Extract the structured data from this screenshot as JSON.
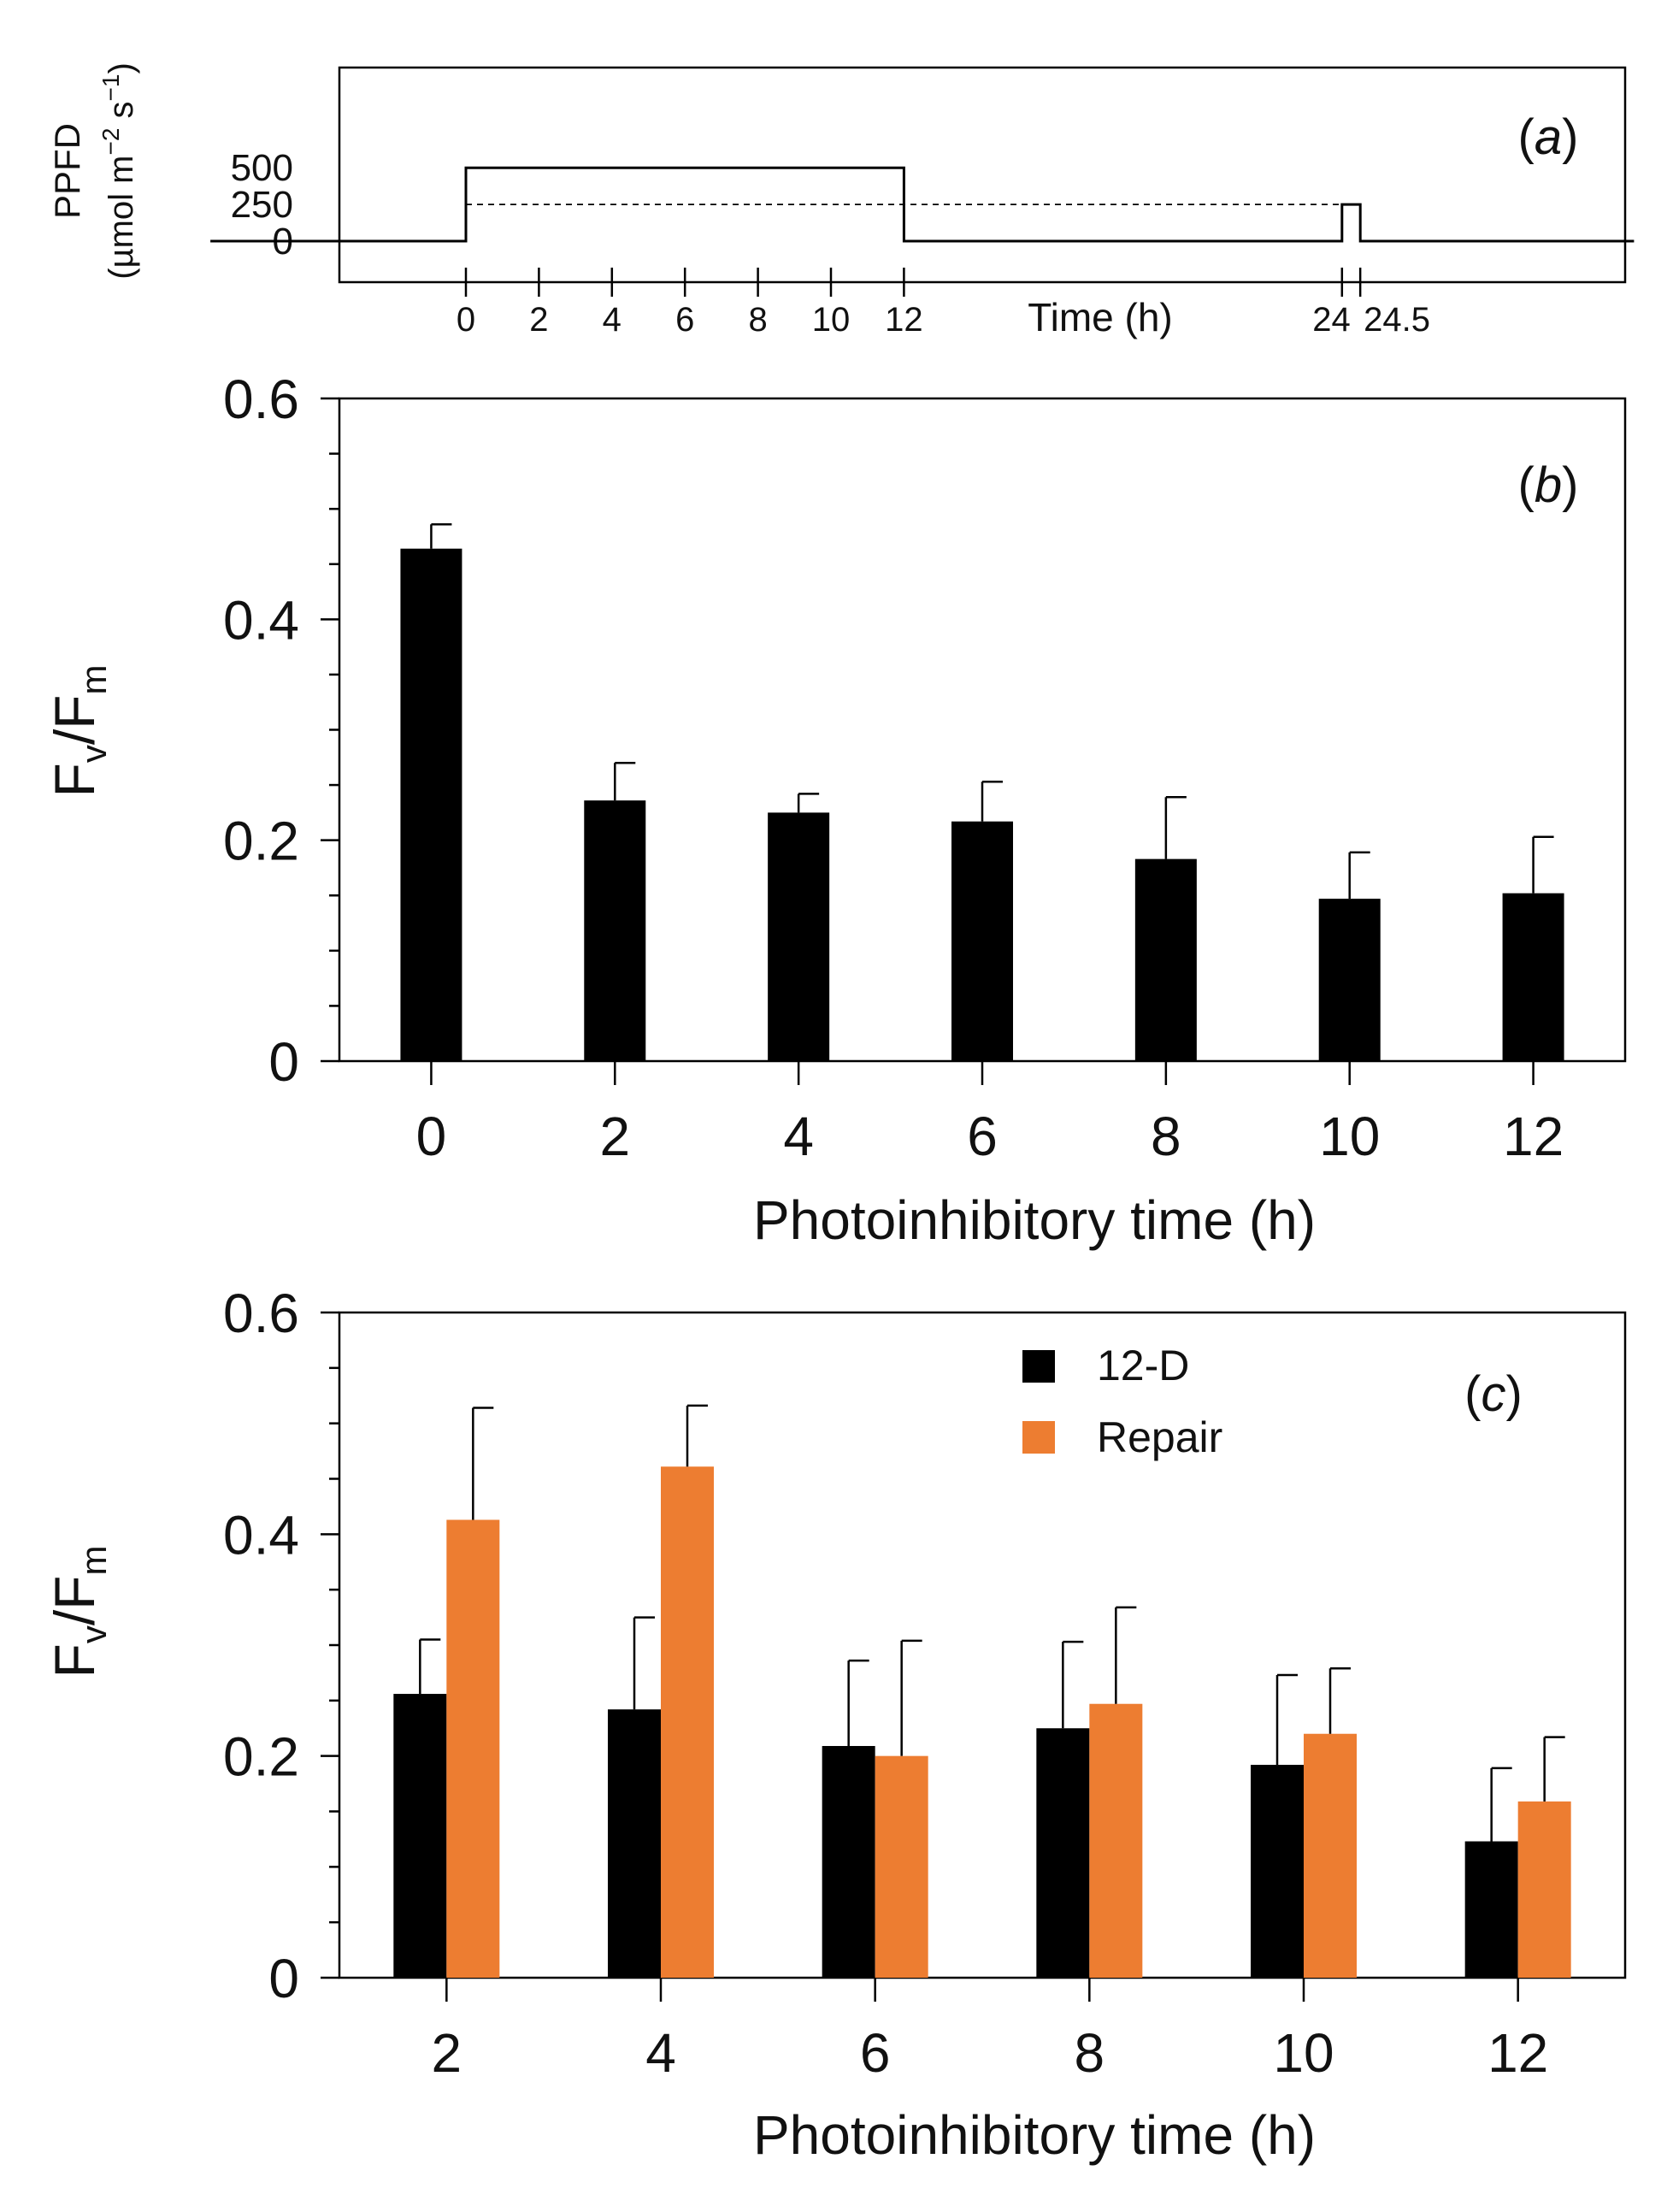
{
  "chart_data": [
    {
      "panel": "(a)",
      "panel_letter": "a",
      "type": "line",
      "ylabel_line1": "PPFD",
      "ylabel_line2": "(µmol m",
      "ylabel_exp1": "−2",
      "ylabel_mid": " s",
      "ylabel_exp2": "−1",
      "ylabel_end": ")",
      "xlabel": "Time (h)",
      "yticks": [
        0,
        250,
        500
      ],
      "xticks": [
        0,
        2,
        4,
        6,
        8,
        10,
        12,
        24,
        "24.5"
      ],
      "series": [
        {
          "name": "PPFD",
          "style": "solid",
          "points": [
            [
              -7,
              0
            ],
            [
              0,
              0
            ],
            [
              0,
              500
            ],
            [
              12,
              500
            ],
            [
              12,
              0
            ],
            [
              24,
              0
            ],
            [
              24,
              250
            ],
            [
              24.5,
              250
            ],
            [
              24.5,
              0
            ],
            [
              32,
              0
            ]
          ]
        },
        {
          "name": "reference 250",
          "style": "dashed",
          "points": [
            [
              0,
              250
            ],
            [
              24,
              250
            ]
          ]
        }
      ]
    },
    {
      "panel": "(b)",
      "panel_letter": "b",
      "type": "bar",
      "ylabel_main": "F",
      "ylabel_sub1": "v",
      "ylabel_slash": "/F",
      "ylabel_sub2": "m",
      "xlabel": "Photoinhibitory time (h)",
      "ylim": [
        0,
        0.6
      ],
      "yticks": [
        "0",
        "0.2",
        "0.4",
        "0.6"
      ],
      "categories": [
        "0",
        "2",
        "4",
        "6",
        "8",
        "10",
        "12"
      ],
      "series": [
        {
          "name": "Fv/Fm",
          "color": "#000000",
          "values": [
            0.464,
            0.236,
            0.225,
            0.217,
            0.183,
            0.147,
            0.152
          ],
          "errors": [
            0.022,
            0.034,
            0.017,
            0.036,
            0.056,
            0.042,
            0.051
          ]
        }
      ]
    },
    {
      "panel": "(c)",
      "panel_letter": "c",
      "type": "bar",
      "ylabel_main": "F",
      "ylabel_sub1": "v",
      "ylabel_slash": "/F",
      "ylabel_sub2": "m",
      "xlabel": "Photoinhibitory time (h)",
      "ylim": [
        0,
        0.6
      ],
      "yticks": [
        "0",
        "0.2",
        "0.4",
        "0.6"
      ],
      "categories": [
        "2",
        "4",
        "6",
        "8",
        "10",
        "12"
      ],
      "legend_position": "top-center",
      "series": [
        {
          "name": "12-D",
          "color": "#000000",
          "values": [
            0.256,
            0.242,
            0.209,
            0.225,
            0.192,
            0.123
          ],
          "errors": [
            0.049,
            0.083,
            0.077,
            0.078,
            0.081,
            0.066
          ]
        },
        {
          "name": "Repair",
          "color": "#ED7D31",
          "values": [
            0.413,
            0.461,
            0.2,
            0.247,
            0.22,
            0.159
          ],
          "errors": [
            0.101,
            0.055,
            0.104,
            0.087,
            0.059,
            0.058
          ]
        }
      ]
    }
  ]
}
